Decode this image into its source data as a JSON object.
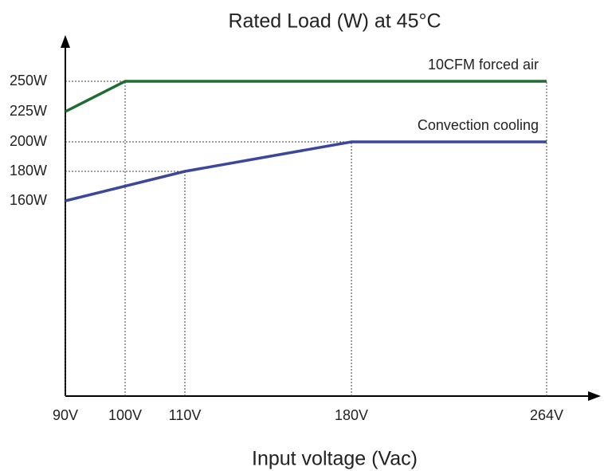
{
  "chart_data": {
    "type": "line",
    "title": "Rated Load (W) at 45°C",
    "x_label": "Input voltage (Vac)",
    "xticks": [
      {
        "value": 90,
        "label": "90V"
      },
      {
        "value": 100,
        "label": "100V"
      },
      {
        "value": 110,
        "label": "110V"
      },
      {
        "value": 180,
        "label": "180V"
      },
      {
        "value": 264,
        "label": "264V"
      }
    ],
    "yticks": [
      {
        "value": 160,
        "label": "160W"
      },
      {
        "value": 180,
        "label": "180W"
      },
      {
        "value": 200,
        "label": "200W"
      },
      {
        "value": 225,
        "label": "225W"
      },
      {
        "value": 250,
        "label": "250W"
      }
    ],
    "series": [
      {
        "name": "10CFM forced air",
        "color": "#1f6b30",
        "x": [
          90,
          100,
          264
        ],
        "values": [
          225,
          250,
          250
        ]
      },
      {
        "name": "Convection cooling",
        "color": "#3b479c",
        "x": [
          90,
          110,
          180,
          264
        ],
        "values": [
          160,
          180,
          200,
          200
        ]
      }
    ]
  }
}
